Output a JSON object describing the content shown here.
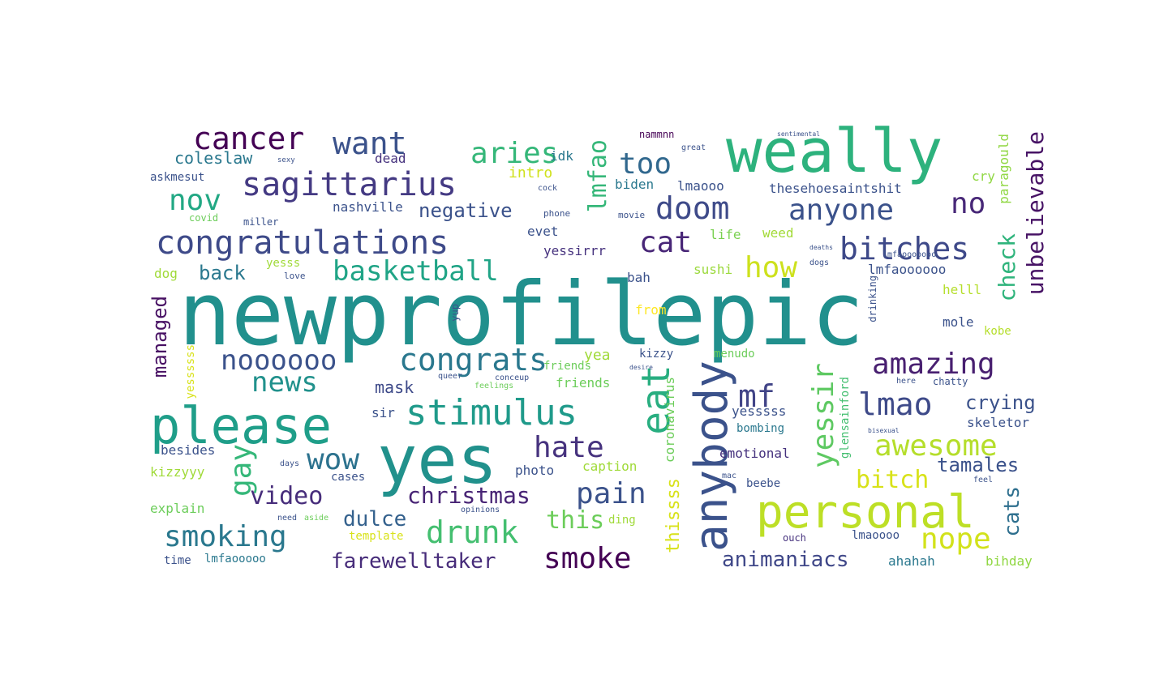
{
  "words": [
    {
      "text": "newprofilepic",
      "color": "#21908d"
    },
    {
      "text": "yes",
      "color": "#21918c"
    },
    {
      "text": "weally",
      "color": "#2db27d"
    },
    {
      "text": "please",
      "color": "#1f9e89"
    },
    {
      "text": "anybody",
      "color": "#3b528b"
    },
    {
      "text": "personal",
      "color": "#bddf26"
    },
    {
      "text": "eat",
      "color": "#28ae80"
    },
    {
      "text": "congratulations",
      "color": "#3e4a89"
    },
    {
      "text": "sagittarius",
      "color": "#443a83"
    },
    {
      "text": "stimulus",
      "color": "#1f9a8a"
    },
    {
      "text": "congrats",
      "color": "#2a788e"
    },
    {
      "text": "cancer",
      "color": "#440154"
    },
    {
      "text": "want",
      "color": "#3b528b"
    },
    {
      "text": "aries",
      "color": "#35b779"
    },
    {
      "text": "too",
      "color": "#31688e"
    },
    {
      "text": "lmfao",
      "color": "#35b779"
    },
    {
      "text": "doom",
      "color": "#3e4a89"
    },
    {
      "text": "anyone",
      "color": "#3b528b"
    },
    {
      "text": "no",
      "color": "#482878"
    },
    {
      "text": "bitches",
      "color": "#3e4989"
    },
    {
      "text": "cat",
      "color": "#482677"
    },
    {
      "text": "how",
      "color": "#cde11d"
    },
    {
      "text": "basketball",
      "color": "#20a486"
    },
    {
      "text": "nov",
      "color": "#22a884"
    },
    {
      "text": "noooooo",
      "color": "#3b528b"
    },
    {
      "text": "news",
      "color": "#21918c"
    },
    {
      "text": "amazing",
      "color": "#481f70"
    },
    {
      "text": "lmao",
      "color": "#3e4a89"
    },
    {
      "text": "mf",
      "color": "#414487"
    },
    {
      "text": "yessir",
      "color": "#5ec962"
    },
    {
      "text": "hate",
      "color": "#46327e"
    },
    {
      "text": "awesome",
      "color": "#b5de2b"
    },
    {
      "text": "wow",
      "color": "#2c728e"
    },
    {
      "text": "gay",
      "color": "#35b779"
    },
    {
      "text": "video",
      "color": "#472d7b"
    },
    {
      "text": "christmas",
      "color": "#482475"
    },
    {
      "text": "pain",
      "color": "#3b528b"
    },
    {
      "text": "drunk",
      "color": "#44bf70"
    },
    {
      "text": "this",
      "color": "#6ccd5a"
    },
    {
      "text": "smoking",
      "color": "#2a788e"
    },
    {
      "text": "smoke",
      "color": "#440154"
    },
    {
      "text": "farewelltaker",
      "color": "#472c7a"
    },
    {
      "text": "animaniacs",
      "color": "#3f4788"
    },
    {
      "text": "nope",
      "color": "#d2e21b"
    },
    {
      "text": "bitch",
      "color": "#d8e219"
    },
    {
      "text": "tamales",
      "color": "#3b528b"
    },
    {
      "text": "cats",
      "color": "#2e6f8e"
    },
    {
      "text": "crying",
      "color": "#3b528b"
    },
    {
      "text": "skeletor",
      "color": "#3b528b"
    },
    {
      "text": "dulce",
      "color": "#34618d"
    },
    {
      "text": "managed",
      "color": "#471063"
    },
    {
      "text": "negative",
      "color": "#3b528b"
    },
    {
      "text": "back",
      "color": "#2a788e"
    },
    {
      "text": "mask",
      "color": "#3e4a89"
    },
    {
      "text": "yea",
      "color": "#a0da39"
    },
    {
      "text": "coleslaw",
      "color": "#2a788e"
    },
    {
      "text": "askmesut",
      "color": "#3b528b"
    },
    {
      "text": "check",
      "color": "#2fb47c"
    },
    {
      "text": "unbelievable",
      "color": "#471365"
    },
    {
      "text": "paragould",
      "color": "#90d743"
    },
    {
      "text": "thesehoesaintshit",
      "color": "#3b528b"
    },
    {
      "text": "lmaooo",
      "color": "#3b528b"
    },
    {
      "text": "biden",
      "color": "#2a788e"
    },
    {
      "text": "intro",
      "color": "#d0e11c"
    },
    {
      "text": "idk",
      "color": "#2a788e"
    },
    {
      "text": "dead",
      "color": "#46327e"
    },
    {
      "text": "nashville",
      "color": "#3b528b"
    },
    {
      "text": "yessirrr",
      "color": "#46327e"
    },
    {
      "text": "evet",
      "color": "#3b528b"
    },
    {
      "text": "life",
      "color": "#7ad151"
    },
    {
      "text": "weed",
      "color": "#a2da37"
    },
    {
      "text": "sushi",
      "color": "#9bd93c"
    },
    {
      "text": "bah",
      "color": "#3b528b"
    },
    {
      "text": "lmfaoooooo",
      "color": "#3b528b"
    },
    {
      "text": "helll",
      "color": "#b5de2b"
    },
    {
      "text": "mole",
      "color": "#3b528b"
    },
    {
      "text": "kobe",
      "color": "#b5de2b"
    },
    {
      "text": "cry",
      "color": "#90d743"
    },
    {
      "text": "from",
      "color": "#fde725"
    },
    {
      "text": "menudo",
      "color": "#6ccd5a"
    },
    {
      "text": "kizzy",
      "color": "#3b528b"
    },
    {
      "text": "friends",
      "color": "#6ccd5a"
    },
    {
      "text": "sir",
      "color": "#3b528b"
    },
    {
      "text": "yesssss",
      "color": "#3b528b"
    },
    {
      "text": "bombing",
      "color": "#2a788e"
    },
    {
      "text": "emotional",
      "color": "#46327e"
    },
    {
      "text": "coronavirus",
      "color": "#6ccd5a"
    },
    {
      "text": "caption",
      "color": "#a0da39"
    },
    {
      "text": "photo",
      "color": "#3b528b"
    },
    {
      "text": "thissss",
      "color": "#d8e219"
    },
    {
      "text": "beebe",
      "color": "#3b528b"
    },
    {
      "text": "ahahah",
      "color": "#2a788e"
    },
    {
      "text": "bihday",
      "color": "#90d743"
    },
    {
      "text": "lmaoooo",
      "color": "#3b528b"
    },
    {
      "text": "ouch",
      "color": "#46327e"
    },
    {
      "text": "ding",
      "color": "#a0da39"
    },
    {
      "text": "template",
      "color": "#d8e219"
    },
    {
      "text": "explain",
      "color": "#6ccd5a"
    },
    {
      "text": "time",
      "color": "#3b528b"
    },
    {
      "text": "lmfaooooo",
      "color": "#2a788e"
    },
    {
      "text": "kizzyyy",
      "color": "#a0da39"
    },
    {
      "text": "besides",
      "color": "#3b528b"
    },
    {
      "text": "cases",
      "color": "#3b528b"
    },
    {
      "text": "dog",
      "color": "#a0da39"
    },
    {
      "text": "yesss",
      "color": "#a0da39"
    },
    {
      "text": "yessssss",
      "color": "#d8e219"
    },
    {
      "text": "glensainford",
      "color": "#44bf70"
    },
    {
      "text": "drinking",
      "color": "#3b528b"
    },
    {
      "text": "yup",
      "color": "#3b528b"
    },
    {
      "text": "covid",
      "color": "#6ccd5a"
    },
    {
      "text": "miller",
      "color": "#3b528b"
    },
    {
      "text": "love",
      "color": "#3b528b"
    },
    {
      "text": "phone",
      "color": "#3b528b"
    },
    {
      "text": "movie",
      "color": "#3b528b"
    },
    {
      "text": "lmfaooooooo",
      "color": "#3b528b"
    },
    {
      "text": "cock",
      "color": "#3b528b"
    },
    {
      "text": "great",
      "color": "#3b528b"
    },
    {
      "text": "nammnn",
      "color": "#440154"
    },
    {
      "text": "sentimental",
      "color": "#3b528b"
    },
    {
      "text": "sexy",
      "color": "#3b528b"
    },
    {
      "text": "friends",
      "color": "#6ccd5a"
    },
    {
      "text": "feelings",
      "color": "#6ccd5a"
    },
    {
      "text": "conceup",
      "color": "#3b528b"
    },
    {
      "text": "queer",
      "color": "#3b528b"
    },
    {
      "text": "opinions",
      "color": "#3b528b"
    },
    {
      "text": "need",
      "color": "#3b528b"
    },
    {
      "text": "aside",
      "color": "#6ccd5a"
    },
    {
      "text": "days",
      "color": "#3b528b"
    },
    {
      "text": "desire",
      "color": "#3b528b"
    },
    {
      "text": "feel",
      "color": "#3b528b"
    },
    {
      "text": "chatty",
      "color": "#3b528b"
    },
    {
      "text": "here",
      "color": "#3b528b"
    },
    {
      "text": "dogs",
      "color": "#3b528b"
    },
    {
      "text": "deaths",
      "color": "#3b528b"
    },
    {
      "text": "mac",
      "color": "#3b528b"
    },
    {
      "text": "bisexual",
      "color": "#3b528b"
    }
  ]
}
